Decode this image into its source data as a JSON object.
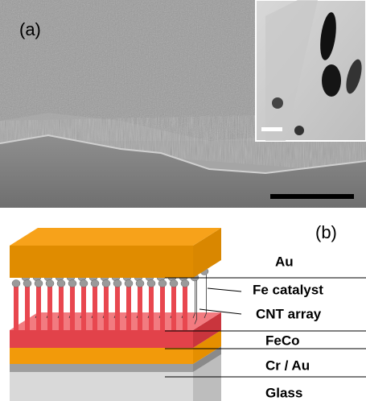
{
  "panel_a": {
    "label": "(a)"
  },
  "panel_b": {
    "label": "(b)",
    "layers": [
      "Au",
      "Fe catalyst",
      "CNT array",
      "FeCo",
      "Cr / Au",
      "Glass"
    ]
  }
}
